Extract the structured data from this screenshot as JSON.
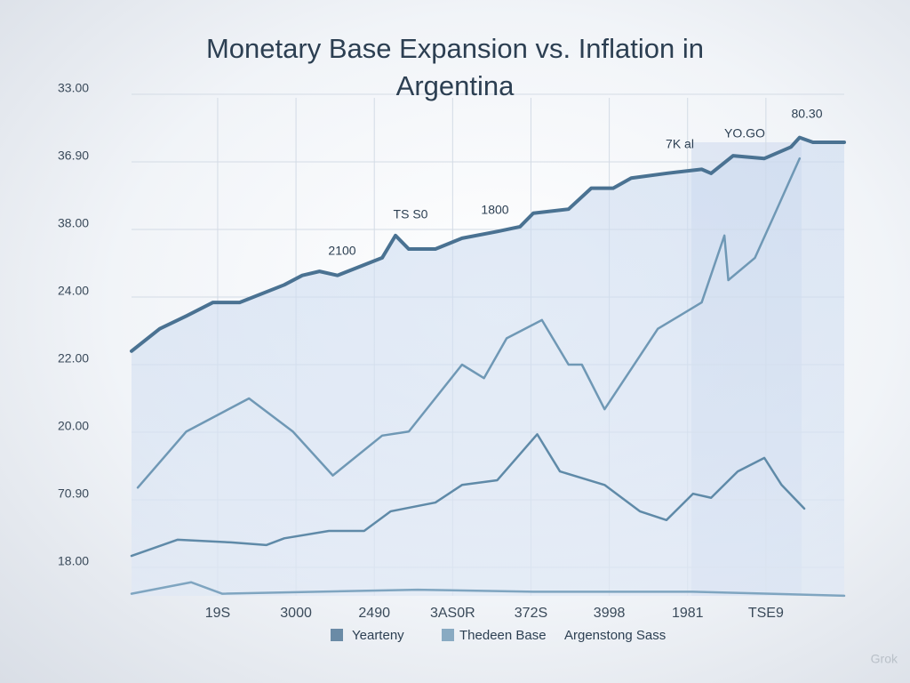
{
  "chart_data": {
    "type": "line",
    "title": "Monetary Base Expansion vs. Inflation in Argentina",
    "xlim": [
      -0.1,
      9.0
    ],
    "xticks": [
      {
        "value": 1,
        "label": "19S"
      },
      {
        "value": 2,
        "label": "3000"
      },
      {
        "value": 3,
        "label": "2490"
      },
      {
        "value": 4,
        "label": "3AS0R"
      },
      {
        "value": 5,
        "label": "372S"
      },
      {
        "value": 6,
        "label": "3998"
      },
      {
        "value": 7,
        "label": "1981"
      },
      {
        "value": 8,
        "label": "TSE9"
      }
    ],
    "ylim": [
      -0.5,
      7.5
    ],
    "yticks": [
      {
        "value": 0,
        "label": "18.00"
      },
      {
        "value": 1,
        "label": "70.90"
      },
      {
        "value": 2,
        "label": "20.00"
      },
      {
        "value": 3,
        "label": "22.00"
      },
      {
        "value": 4,
        "label": "24.00"
      },
      {
        "value": 5,
        "label": "38.00"
      },
      {
        "value": 6,
        "label": "36.90"
      },
      {
        "value": 7,
        "label": "33.00"
      }
    ],
    "grid": true,
    "series": [
      {
        "name": "Yearteny",
        "color": "#4a7292",
        "x": [
          -0.1,
          0.26,
          0.6,
          0.94,
          1.28,
          1.85,
          2.08,
          2.3,
          2.53,
          3.1,
          3.27,
          3.44,
          3.78,
          4.12,
          4.57,
          4.86,
          5.03,
          5.48,
          5.77,
          6.05,
          6.28,
          6.73,
          7.18,
          7.3,
          7.58,
          7.98,
          8.32,
          8.43,
          8.6,
          9.0
        ],
        "values": [
          3.2,
          3.53,
          3.72,
          3.92,
          3.92,
          4.18,
          4.32,
          4.38,
          4.32,
          4.58,
          4.91,
          4.71,
          4.71,
          4.87,
          4.97,
          5.04,
          5.24,
          5.3,
          5.61,
          5.61,
          5.76,
          5.83,
          5.89,
          5.83,
          6.09,
          6.05,
          6.22,
          6.36,
          6.29,
          6.29
        ]
      },
      {
        "name": "Thedeen Base",
        "color": "#6f98b5",
        "x": [
          -0.02,
          0.6,
          1.4,
          1.96,
          2.47,
          3.1,
          3.44,
          4.12,
          4.4,
          4.69,
          5.14,
          5.48,
          5.65,
          5.94,
          6.62,
          7.18,
          7.47,
          7.52,
          7.86,
          8.09,
          8.43
        ],
        "values": [
          1.18,
          2.01,
          2.5,
          2.01,
          1.36,
          1.95,
          2.01,
          3.0,
          2.8,
          3.39,
          3.66,
          3.0,
          3.0,
          2.34,
          3.53,
          3.92,
          4.91,
          4.25,
          4.58,
          5.17,
          6.05
        ]
      },
      {
        "name": "Argenstong Sass",
        "color": "#5f8aa8",
        "x": [
          -0.1,
          0.49,
          1.17,
          1.62,
          1.85,
          2.42,
          2.87,
          3.21,
          3.78,
          4.12,
          4.57,
          5.08,
          5.37,
          5.94,
          6.39,
          6.73,
          7.07,
          7.3,
          7.64,
          7.98,
          8.2,
          8.49
        ],
        "values": [
          0.17,
          0.41,
          0.37,
          0.33,
          0.43,
          0.54,
          0.54,
          0.83,
          0.96,
          1.22,
          1.29,
          1.97,
          1.42,
          1.22,
          0.83,
          0.7,
          1.09,
          1.03,
          1.42,
          1.62,
          1.22,
          0.87
        ]
      },
      {
        "color": "#7fa5c0",
        "x": [
          -0.1,
          0.66,
          1.06,
          3.55,
          5.03,
          7.07,
          9.0
        ],
        "values": [
          -0.39,
          -0.22,
          -0.39,
          -0.33,
          -0.36,
          -0.36,
          -0.42
        ]
      }
    ],
    "annotations": [
      "2100",
      "TS S0",
      "1800",
      "7K al",
      "YO.GO",
      "80.30"
    ],
    "watermark": "Grok"
  }
}
